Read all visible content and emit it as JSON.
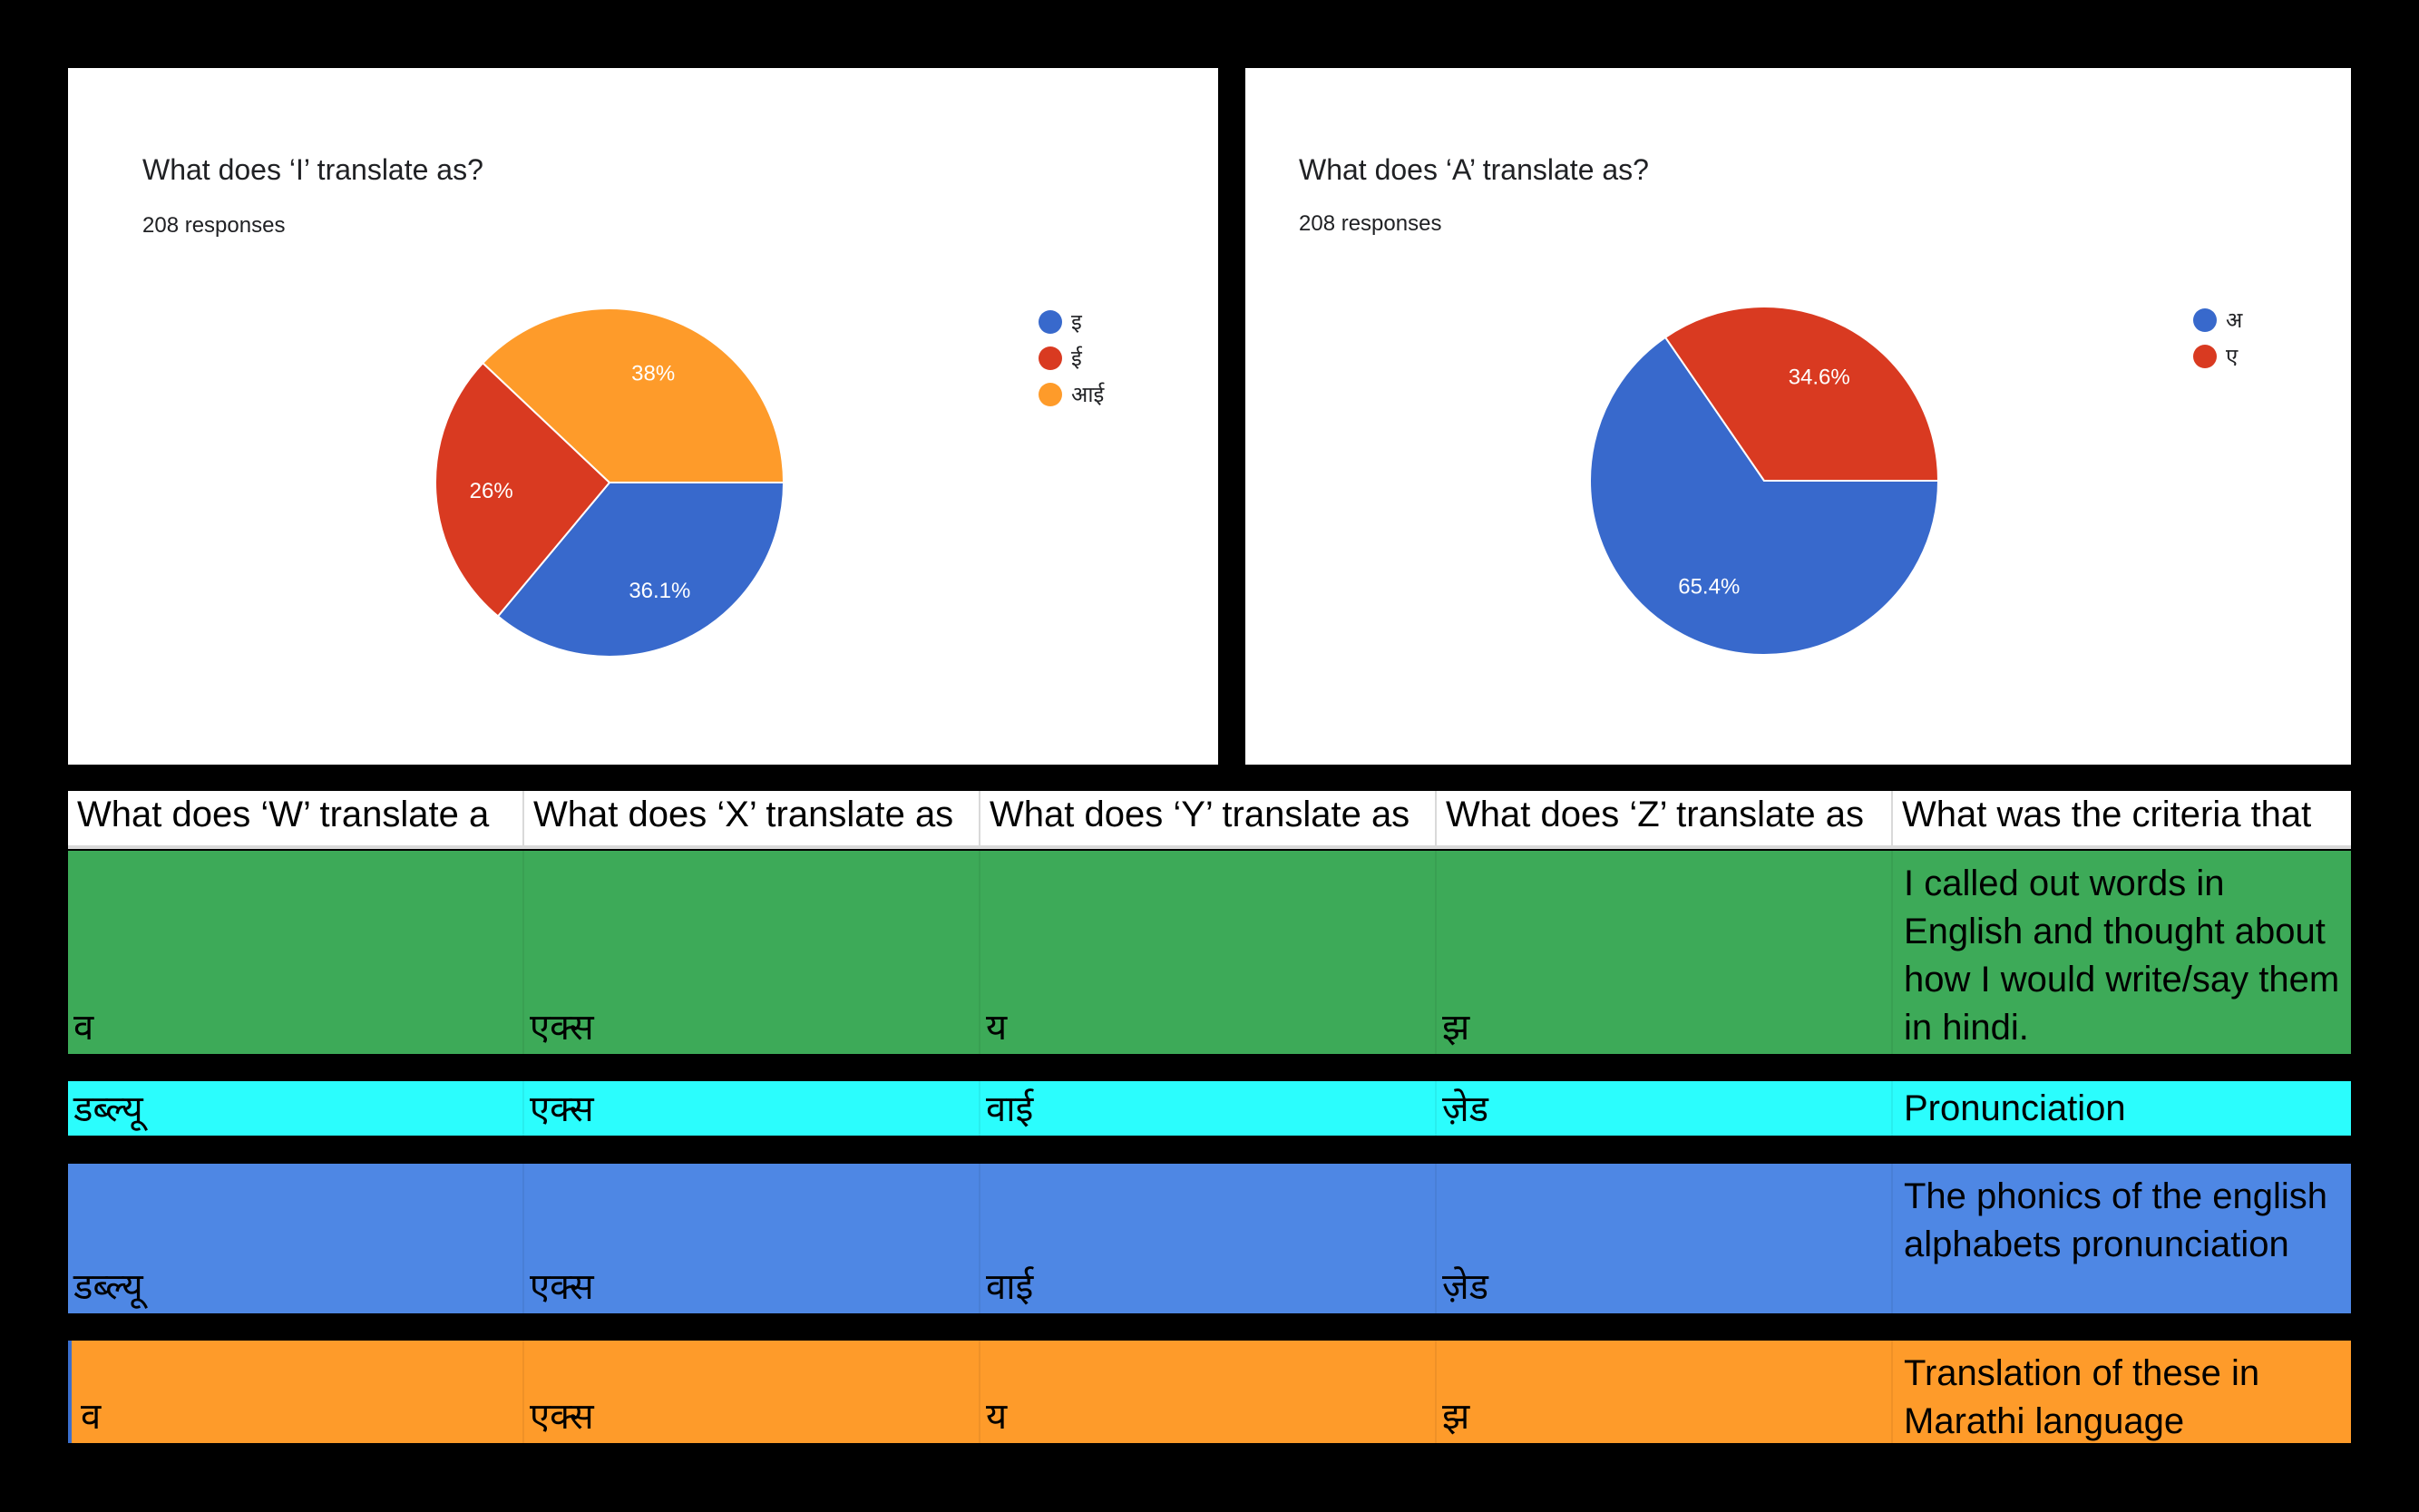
{
  "chart_data": [
    {
      "type": "pie",
      "title": "What does ‘I’ translate as?",
      "subtitle": "208 responses",
      "legend_position": "right",
      "slices": [
        {
          "label": "इ",
          "value": 36.1,
          "display": "36.1%",
          "color": "#3869cc"
        },
        {
          "label": "ई",
          "value": 26,
          "display": "26%",
          "color": "#d93a21"
        },
        {
          "label": "आई",
          "value": 38,
          "display": "38%",
          "color": "#fe9b2a"
        }
      ]
    },
    {
      "type": "pie",
      "title": "What does ‘A’ translate as?",
      "subtitle": "208 responses",
      "legend_position": "right",
      "slices": [
        {
          "label": "अ",
          "value": 65.4,
          "display": "65.4%",
          "color": "#3869cc"
        },
        {
          "label": "ए",
          "value": 34.6,
          "display": "34.6%",
          "color": "#d93a21"
        }
      ]
    }
  ],
  "table": {
    "headers": [
      "What does ‘W’ translate a",
      "What does ‘X’ translate as",
      "What does ‘Y’ translate as",
      "What does ‘Z’ translate as",
      "What was the criteria that"
    ],
    "rows": [
      {
        "cells": [
          "व",
          "एक्स",
          "य",
          "झ",
          "I called out words in English and thought about how I would write/say them in hindi."
        ],
        "color": "#3daa58"
      },
      {
        "cells": [
          "डब्ल्यू",
          "एक्स",
          "वाई",
          "ज़ेड",
          "Pronunciation"
        ],
        "color": "#2bfdfd"
      },
      {
        "cells": [
          "डब्ल्यू",
          "एक्स",
          "वाई",
          "ज़ेड",
          "The phonics of the english alphabets pronunciation"
        ],
        "color": "#4e87e4"
      },
      {
        "cells": [
          "व",
          "एक्स",
          "य",
          "झ",
          "Translation of these in Marathi language"
        ],
        "color": "#fe9b2a"
      }
    ]
  }
}
